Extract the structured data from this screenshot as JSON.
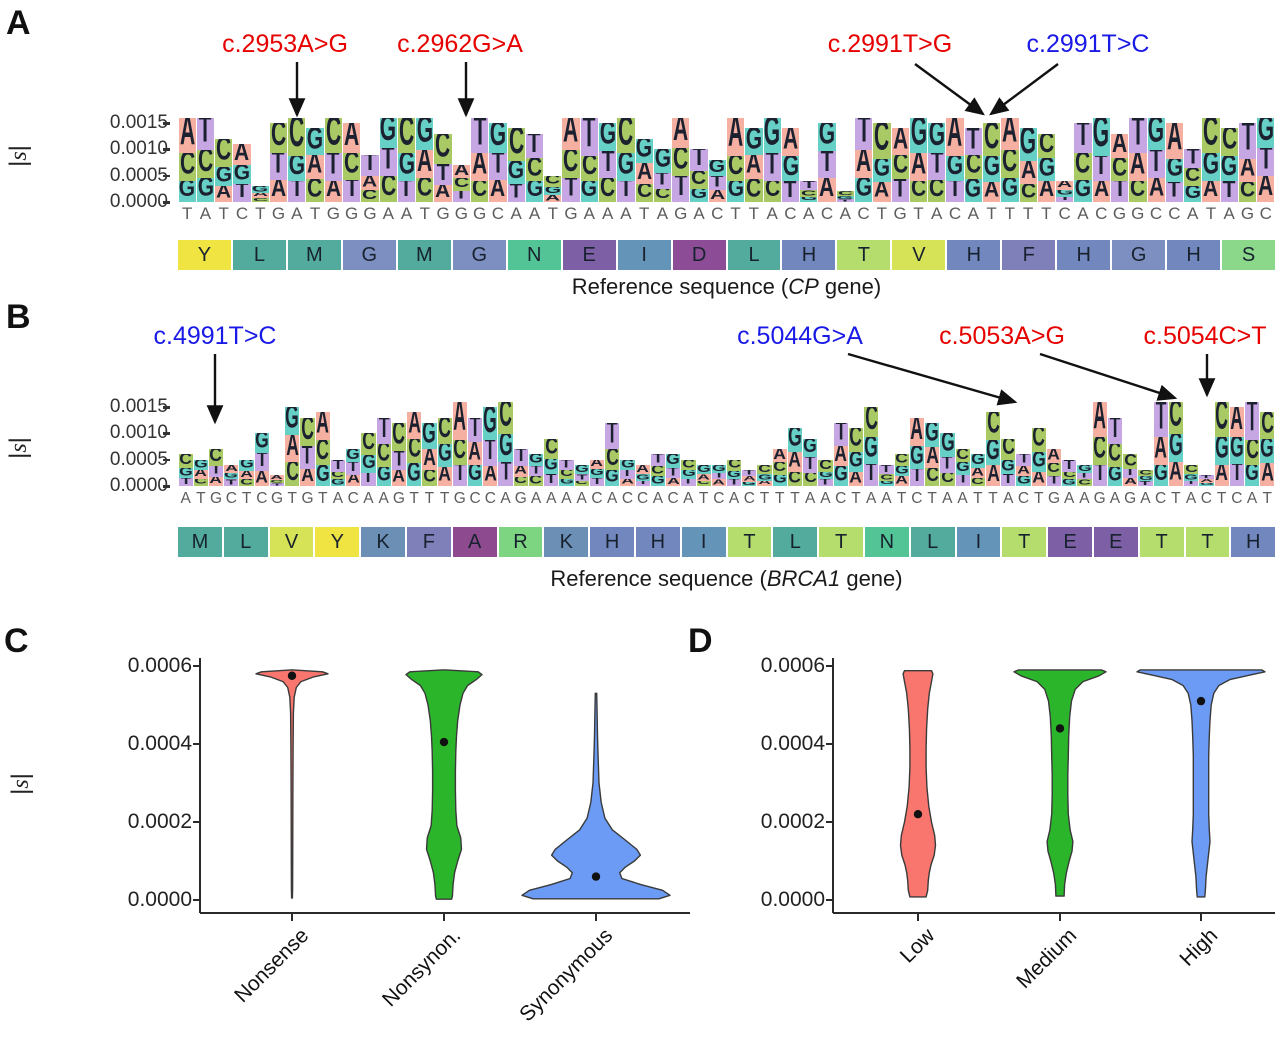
{
  "figure": {
    "panel_labels": [
      "A",
      "B",
      "C",
      "D"
    ],
    "ylabel_bar": "|",
    "ylabel_letter": "s"
  },
  "colors": {
    "background": "#ffffff",
    "annotation_red": "#e60000",
    "annotation_blue": "#1a1ae6",
    "axis_text": "#333333",
    "dna_text": "#5d5d5d",
    "logo_letter": "#1c2130",
    "base_bg": {
      "A": "#f5b0a1",
      "C": "#a9c965",
      "G": "#67d0c6",
      "T": "#c7a7e3"
    },
    "aa_colors": {
      "Y": "#f0e442",
      "V": "#d7e356",
      "T": "#b5dd6e",
      "S": "#8bd88b",
      "R": "#7ed581",
      "N": "#52c495",
      "M": "#52ab9c",
      "L": "#52ab9c",
      "I": "#6494b8",
      "K": "#6b8fb5",
      "H": "#7287bd",
      "G": "#7d8fc1",
      "F": "#7f7fba",
      "E": "#7c5fa5",
      "D": "#8c4d96",
      "A": "#8e4a8e"
    },
    "violin_fills": [
      "#f8766d",
      "#2bb52b",
      "#6b9bf5"
    ],
    "violin_stroke": "#3a3a3a",
    "mean_dot": "#111111",
    "arrow": "#111111"
  },
  "chart_data": [
    {
      "type": "sequence-logo",
      "panel": "A",
      "ylabel": "|s|",
      "yticks": [
        "0.0015",
        "0.0010",
        "0.0005",
        "0.0000"
      ],
      "ytick_values": [
        0.0015,
        0.001,
        0.0005,
        0.0
      ],
      "ref_seq": "TATCTGATGGGAATGGGCAATGAAATAGACTTACACACTGTACATTTTCACGGCCATAGC",
      "aa_seq": "YLMGMGNEIDLHTVHFHGHS",
      "caption": {
        "prefix": "Reference sequence (",
        "gene": "CP",
        "suffix": " gene)"
      },
      "variants": [
        {
          "label": "c.2953A>G",
          "color_key": "annotation_red"
        },
        {
          "label": "c.2962G>A",
          "color_key": "annotation_red"
        },
        {
          "label": "c.2991T>G",
          "color_key": "annotation_red"
        },
        {
          "label": "c.2991T>C",
          "color_key": "annotation_blue"
        }
      ],
      "column_heights": [
        0.0016,
        0.0016,
        0.0012,
        0.0011,
        0.0003,
        0.0015,
        0.0016,
        0.0014,
        0.0016,
        0.0015,
        0.0009,
        0.0016,
        0.0016,
        0.0016,
        0.0013,
        0.0007,
        0.0016,
        0.0015,
        0.0014,
        0.0013,
        0.0005,
        0.0016,
        0.0016,
        0.0015,
        0.0016,
        0.0012,
        0.001,
        0.0016,
        0.001,
        0.0008,
        0.0016,
        0.0014,
        0.0016,
        0.0014,
        0.0004,
        0.0015,
        0.0002,
        0.0016,
        0.0015,
        0.0014,
        0.0016,
        0.0015,
        0.0016,
        0.0014,
        0.0015,
        0.0016,
        0.0014,
        0.0013,
        0.0004,
        0.0015,
        0.0016,
        0.0013,
        0.0016,
        0.0016,
        0.0015,
        0.001,
        0.0016,
        0.0014,
        0.0015,
        0.0016
      ]
    },
    {
      "type": "sequence-logo",
      "panel": "B",
      "ylabel": "|s|",
      "yticks": [
        "0.0015",
        "0.0010",
        "0.0005",
        "0.0000"
      ],
      "ytick_values": [
        0.0015,
        0.001,
        0.0005,
        0.0
      ],
      "ref_seq": "ATGCTCGTGTACAAGTTTGCCAGAAAACACCACATCACTTTAACTAATCTAATTACTGAAGAGACTACTCAT",
      "aa_seq": "MLVYKFARKHHITLTNLITEETTH",
      "caption": {
        "prefix": "Reference sequence (",
        "gene": "BRCA1",
        "suffix": " gene)"
      },
      "variants": [
        {
          "label": "c.4991T>C",
          "color_key": "annotation_blue"
        },
        {
          "label": "c.5044G>A",
          "color_key": "annotation_blue"
        },
        {
          "label": "c.5053A>G",
          "color_key": "annotation_red"
        },
        {
          "label": "c.5054C>T",
          "color_key": "annotation_red"
        }
      ],
      "column_heights": [
        0.0006,
        0.0005,
        0.0007,
        0.0004,
        0.0005,
        0.001,
        0.0002,
        0.0015,
        0.0013,
        0.0014,
        0.0005,
        0.0007,
        0.001,
        0.0013,
        0.0012,
        0.0014,
        0.0012,
        0.0013,
        0.0016,
        0.0013,
        0.0015,
        0.0016,
        0.0007,
        0.0006,
        0.0009,
        0.0005,
        0.0004,
        0.0005,
        0.0012,
        0.0005,
        0.0004,
        0.0006,
        0.0006,
        0.0005,
        0.0004,
        0.0004,
        0.0005,
        0.0003,
        0.0004,
        0.0007,
        0.0011,
        0.0009,
        0.0005,
        0.0012,
        0.0011,
        0.0015,
        0.0004,
        0.0006,
        0.0013,
        0.0012,
        0.001,
        0.0007,
        0.0006,
        0.0014,
        0.0009,
        0.0006,
        0.0011,
        0.0007,
        0.0005,
        0.0004,
        0.0016,
        0.0013,
        0.0006,
        0.0003,
        0.0016,
        0.0016,
        0.0004,
        0.0002,
        0.0016,
        0.0015,
        0.0016,
        0.0014
      ]
    },
    {
      "type": "violin",
      "panel": "C",
      "ylabel": "|s|",
      "ylim": [
        0,
        0.0006
      ],
      "yticks": [
        "0.0006",
        "0.0004",
        "0.0002",
        "0.0000"
      ],
      "ytick_values": [
        0.0006,
        0.0004,
        0.0002,
        0.0
      ],
      "categories": [
        "Nonsense",
        "Nonsynon.",
        "Synonymous"
      ],
      "means": [
        0.000575,
        0.000405,
        6e-05
      ],
      "profiles": [
        [
          [
            0.00059,
            0.03
          ],
          [
            0.000585,
            0.85
          ],
          [
            0.00058,
            1.0
          ],
          [
            0.000572,
            0.6
          ],
          [
            0.00056,
            0.25
          ],
          [
            0.000545,
            0.12
          ],
          [
            0.00052,
            0.06
          ],
          [
            0.00048,
            0.04
          ],
          [
            0.0004,
            0.03
          ],
          [
            0.0003,
            0.025
          ],
          [
            0.0002,
            0.022
          ],
          [
            0.0001,
            0.02
          ],
          [
            3e-05,
            0.018
          ],
          [
            5e-06,
            0.012
          ]
        ],
        [
          [
            0.00059,
            0.05
          ],
          [
            0.000585,
            0.9
          ],
          [
            0.000578,
            1.0
          ],
          [
            0.000565,
            0.85
          ],
          [
            0.00055,
            0.62
          ],
          [
            0.00053,
            0.5
          ],
          [
            0.0005,
            0.42
          ],
          [
            0.00046,
            0.36
          ],
          [
            0.00042,
            0.33
          ],
          [
            0.00038,
            0.31
          ],
          [
            0.00033,
            0.3
          ],
          [
            0.00028,
            0.3
          ],
          [
            0.00023,
            0.31
          ],
          [
            0.00019,
            0.34
          ],
          [
            0.00016,
            0.44
          ],
          [
            0.00013,
            0.46
          ],
          [
            0.0001,
            0.36
          ],
          [
            7e-05,
            0.28
          ],
          [
            4e-05,
            0.24
          ],
          [
            1e-05,
            0.22
          ],
          [
            2e-06,
            0.2
          ]
        ],
        [
          [
            0.00053,
            0.01
          ],
          [
            0.00048,
            0.015
          ],
          [
            0.00042,
            0.02
          ],
          [
            0.00036,
            0.03
          ],
          [
            0.0003,
            0.04
          ],
          [
            0.00025,
            0.07
          ],
          [
            0.00021,
            0.12
          ],
          [
            0.00018,
            0.22
          ],
          [
            0.00015,
            0.42
          ],
          [
            0.00013,
            0.55
          ],
          [
            0.000115,
            0.6
          ],
          [
            0.0001,
            0.52
          ],
          [
            8.5e-05,
            0.4
          ],
          [
            7e-05,
            0.32
          ],
          [
            5.5e-05,
            0.35
          ],
          [
            4e-05,
            0.6
          ],
          [
            2.5e-05,
            0.9
          ],
          [
            1.2e-05,
            1.0
          ],
          [
            3e-06,
            0.85
          ]
        ]
      ]
    },
    {
      "type": "violin",
      "panel": "D",
      "ylabel": "",
      "ylim": [
        0,
        0.0006
      ],
      "yticks": [
        "0.0006",
        "0.0004",
        "0.0002",
        "0.0000"
      ],
      "ytick_values": [
        0.0006,
        0.0004,
        0.0002,
        0.0
      ],
      "categories": [
        "Low",
        "Medium",
        "High"
      ],
      "means": [
        0.00022,
        0.00044,
        0.00051
      ],
      "profiles": [
        [
          [
            0.000588,
            0.5
          ],
          [
            0.00058,
            0.55
          ],
          [
            0.00056,
            0.5
          ],
          [
            0.00053,
            0.42
          ],
          [
            0.00049,
            0.36
          ],
          [
            0.00044,
            0.32
          ],
          [
            0.00039,
            0.3
          ],
          [
            0.00034,
            0.3
          ],
          [
            0.00029,
            0.33
          ],
          [
            0.00024,
            0.4
          ],
          [
            0.0002,
            0.5
          ],
          [
            0.000165,
            0.62
          ],
          [
            0.00014,
            0.65
          ],
          [
            0.000115,
            0.6
          ],
          [
            9e-05,
            0.48
          ],
          [
            7e-05,
            0.42
          ],
          [
            5e-05,
            0.38
          ],
          [
            2.5e-05,
            0.36
          ],
          [
            8e-06,
            0.3
          ]
        ],
        [
          [
            0.00059,
            0.9
          ],
          [
            0.000585,
            1.0
          ],
          [
            0.000575,
            0.85
          ],
          [
            0.00056,
            0.5
          ],
          [
            0.00054,
            0.33
          ],
          [
            0.00051,
            0.25
          ],
          [
            0.00047,
            0.21
          ],
          [
            0.00042,
            0.19
          ],
          [
            0.00037,
            0.18
          ],
          [
            0.00032,
            0.17
          ],
          [
            0.00027,
            0.17
          ],
          [
            0.00022,
            0.18
          ],
          [
            0.00018,
            0.22
          ],
          [
            0.00015,
            0.28
          ],
          [
            0.000125,
            0.26
          ],
          [
            0.0001,
            0.2
          ],
          [
            7e-05,
            0.14
          ],
          [
            4e-05,
            0.1
          ],
          [
            1e-05,
            0.09
          ]
        ],
        [
          [
            0.00059,
            0.95
          ],
          [
            0.000585,
            1.0
          ],
          [
            0.000578,
            0.8
          ],
          [
            0.000565,
            0.45
          ],
          [
            0.00055,
            0.28
          ],
          [
            0.00053,
            0.2
          ],
          [
            0.0005,
            0.16
          ],
          [
            0.00046,
            0.14
          ],
          [
            0.00042,
            0.13
          ],
          [
            0.00037,
            0.12
          ],
          [
            0.00032,
            0.12
          ],
          [
            0.00027,
            0.12
          ],
          [
            0.00022,
            0.12
          ],
          [
            0.00018,
            0.13
          ],
          [
            0.00015,
            0.14
          ],
          [
            0.00012,
            0.12
          ],
          [
            9e-05,
            0.1
          ],
          [
            6e-05,
            0.08
          ],
          [
            3e-05,
            0.07
          ],
          [
            8e-06,
            0.06
          ]
        ]
      ]
    }
  ]
}
